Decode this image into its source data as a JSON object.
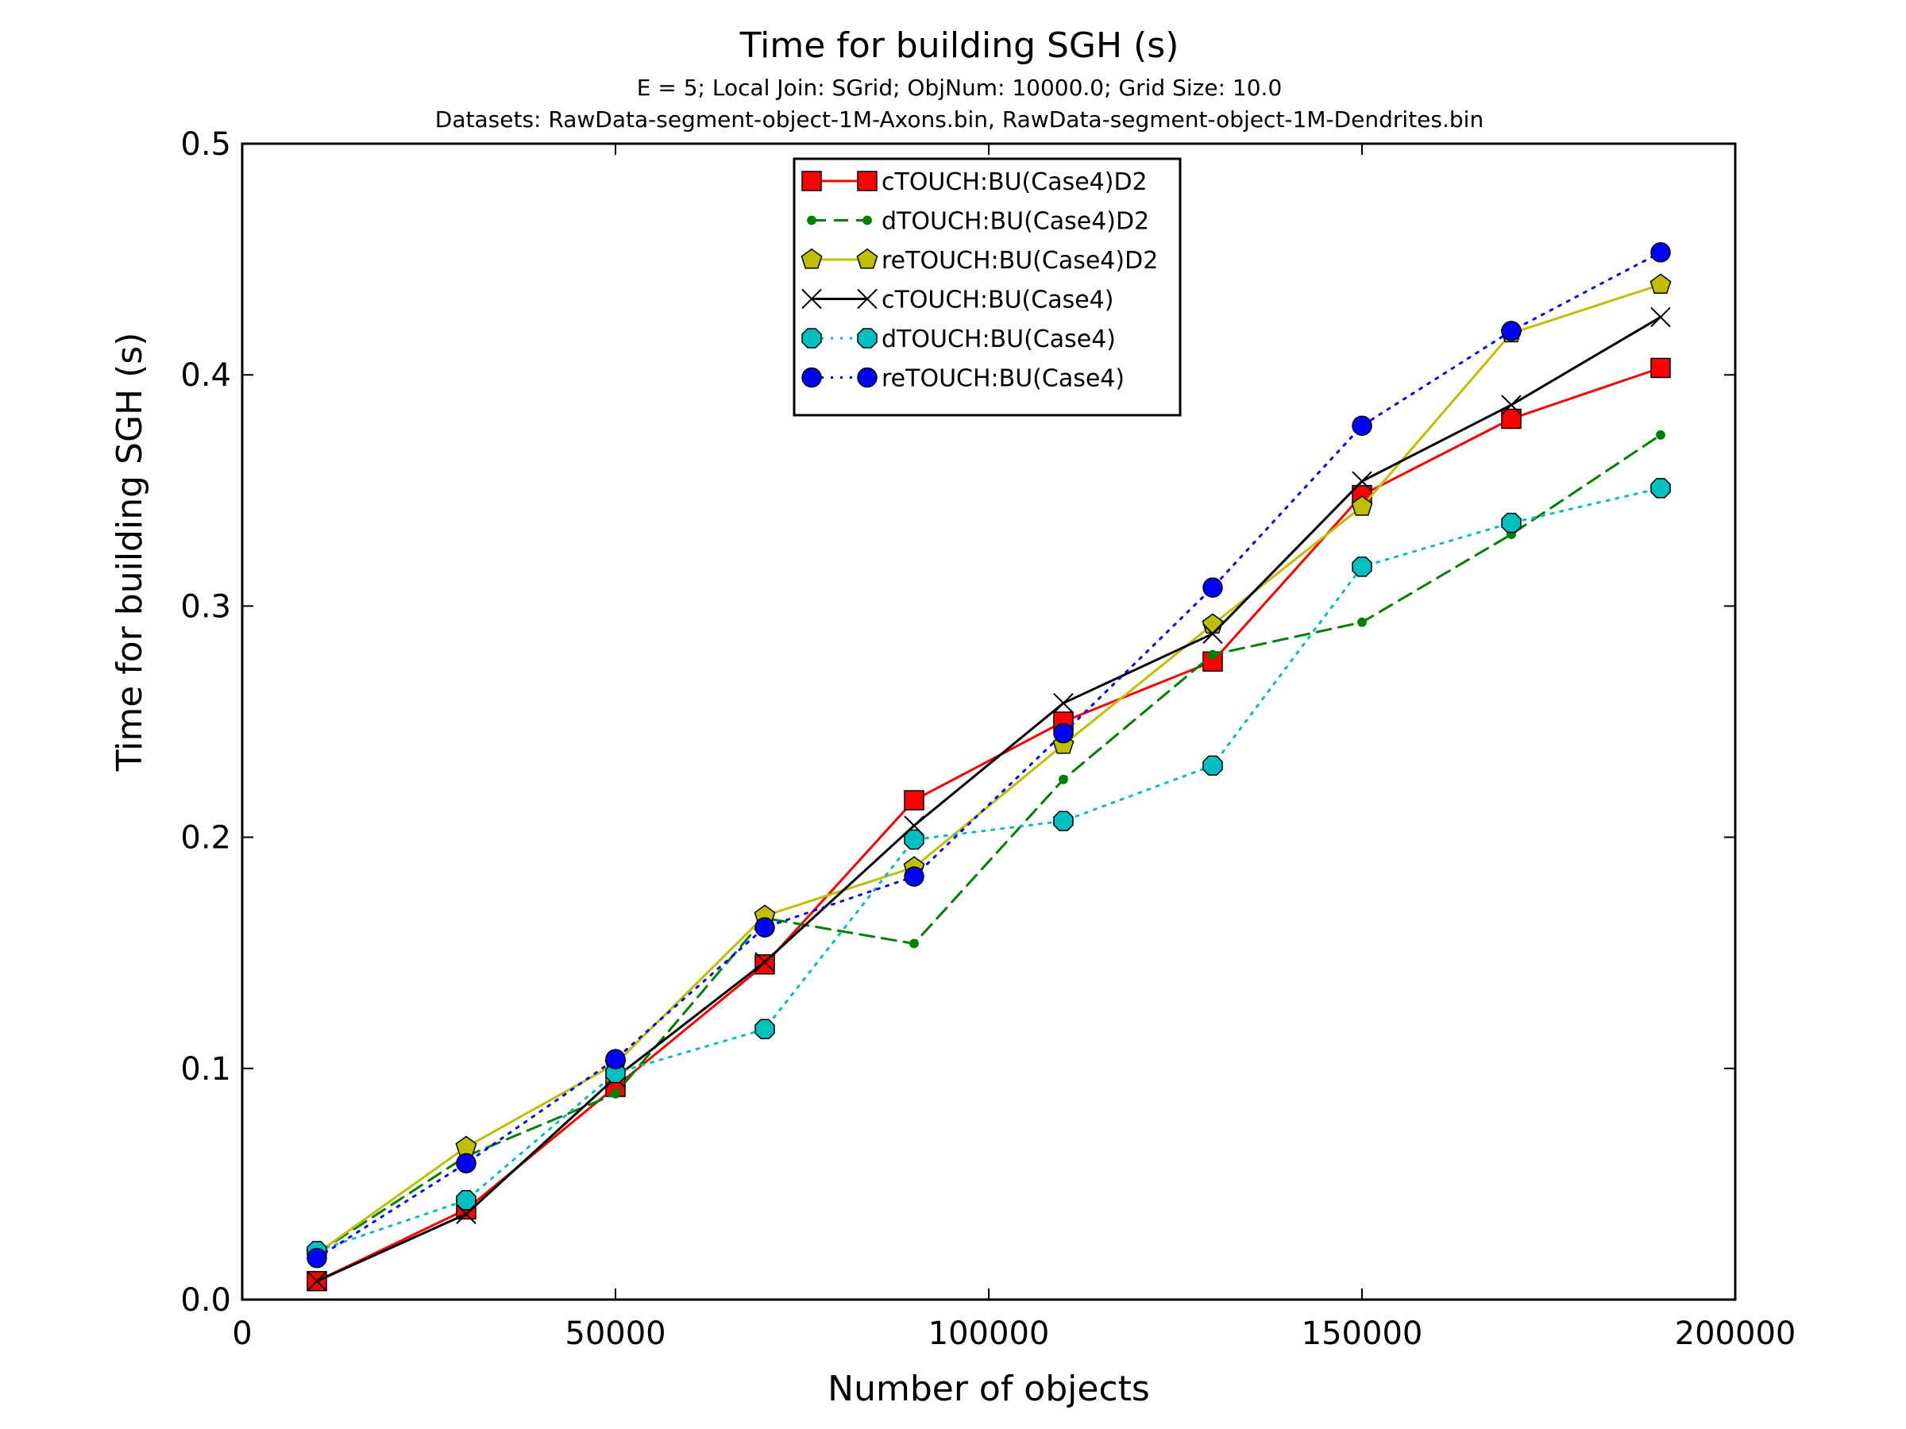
{
  "chart_data": {
    "type": "line",
    "title": "Time for building SGH (s)",
    "subtitle_lines": [
      "E = 5; Local Join: SGrid; ObjNum: 10000.0; Grid Size: 10.0",
      "Datasets: RawData-segment-object-1M-Axons.bin, RawData-segment-object-1M-Dendrites.bin"
    ],
    "xlabel": "Number of objects",
    "ylabel": "Time for building SGH (s)",
    "xlim": [
      0,
      200000
    ],
    "ylim": [
      0.0,
      0.5
    ],
    "xticks": [
      0,
      50000,
      100000,
      150000,
      200000
    ],
    "xtick_labels": [
      "0",
      "50000",
      "100000",
      "150000",
      "200000"
    ],
    "yticks": [
      0.0,
      0.1,
      0.2,
      0.3,
      0.4,
      0.5
    ],
    "ytick_labels": [
      "0.0",
      "0.1",
      "0.2",
      "0.3",
      "0.4",
      "0.5"
    ],
    "grid": false,
    "legend_position": "top-center",
    "x": [
      10000,
      30000,
      50000,
      70000,
      90000,
      110000,
      130000,
      150000,
      170000,
      190000
    ],
    "series": [
      {
        "name": "cTOUCH:BU(Case4)D2",
        "color": "#ff0000",
        "line": "solid",
        "marker": "square",
        "values": [
          0.008,
          0.039,
          0.092,
          0.145,
          0.216,
          0.25,
          0.276,
          0.348,
          0.381,
          0.403
        ]
      },
      {
        "name": "dTOUCH:BU(Case4)D2",
        "color": "#008000",
        "line": "dashed",
        "marker": "point",
        "values": [
          0.02,
          0.062,
          0.089,
          0.165,
          0.154,
          0.225,
          0.279,
          0.293,
          0.331,
          0.374
        ]
      },
      {
        "name": "reTOUCH:BU(Case4)D2",
        "color": "#bfbf00",
        "line": "solid",
        "marker": "pentagon",
        "values": [
          0.02,
          0.066,
          0.102,
          0.166,
          0.187,
          0.24,
          0.292,
          0.343,
          0.418,
          0.439
        ]
      },
      {
        "name": "cTOUCH:BU(Case4)",
        "color": "#000000",
        "line": "solid",
        "marker": "x",
        "values": [
          0.008,
          0.037,
          0.096,
          0.146,
          0.205,
          0.258,
          0.288,
          0.354,
          0.387,
          0.425
        ]
      },
      {
        "name": "dTOUCH:BU(Case4)",
        "color": "#00bfbf",
        "line": "dotted",
        "marker": "octagon",
        "values": [
          0.021,
          0.043,
          0.098,
          0.117,
          0.199,
          0.207,
          0.231,
          0.317,
          0.336,
          0.351
        ]
      },
      {
        "name": "reTOUCH:BU(Case4)",
        "color": "#0000ff",
        "line": "dotted",
        "marker": "circle",
        "values": [
          0.018,
          0.059,
          0.104,
          0.161,
          0.183,
          0.245,
          0.308,
          0.378,
          0.419,
          0.453
        ]
      }
    ]
  }
}
